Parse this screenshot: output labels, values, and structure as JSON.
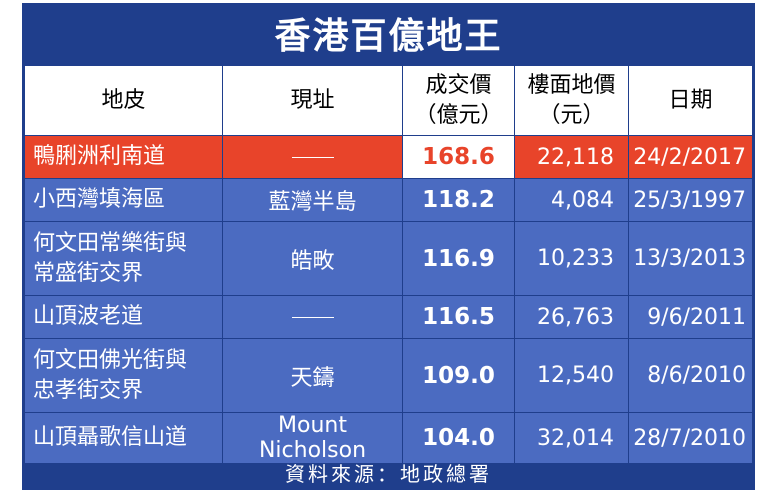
{
  "title": "香港百億地王",
  "headers": {
    "land": "地皮",
    "address": "現址",
    "price_l1": "成交價",
    "price_l2": "（億元）",
    "unit_l1": "樓面地價",
    "unit_l2": "（元）",
    "date": "日期"
  },
  "rows": [
    {
      "land": "鴨脷洲利南道",
      "land_l2": "",
      "address": "",
      "address_dash": true,
      "price": "168.6",
      "unit_price": "22,118",
      "date": "24/2/2017",
      "highlight": true
    },
    {
      "land": "小西灣填海區",
      "land_l2": "",
      "address": "藍灣半島",
      "address_dash": false,
      "price": "118.2",
      "unit_price": "4,084",
      "date": "25/3/1997",
      "highlight": false
    },
    {
      "land": "何文田常樂街與",
      "land_l2": "常盛街交界",
      "address": "皓畋",
      "address_dash": false,
      "price": "116.9",
      "unit_price": "10,233",
      "date": "13/3/2013",
      "highlight": false
    },
    {
      "land": "山頂波老道",
      "land_l2": "",
      "address": "",
      "address_dash": true,
      "price": "116.5",
      "unit_price": "26,763",
      "date": "9/6/2011",
      "highlight": false
    },
    {
      "land": "何文田佛光街與",
      "land_l2": "忠孝街交界",
      "address": "天鑄",
      "address_dash": false,
      "price": "109.0",
      "unit_price": "12,540",
      "date": "8/6/2010",
      "highlight": false
    },
    {
      "land": "山頂聶歌信山道",
      "land_l2": "",
      "address": "Mount Nicholson",
      "address_dash": false,
      "price": "104.0",
      "unit_price": "32,014",
      "date": "28/7/2010",
      "highlight": false
    }
  ],
  "footer": "資料來源：地政總署",
  "colors": {
    "frame": "#1f3e8c",
    "row": "#4b6bc1",
    "highlight": "#e8442a"
  }
}
